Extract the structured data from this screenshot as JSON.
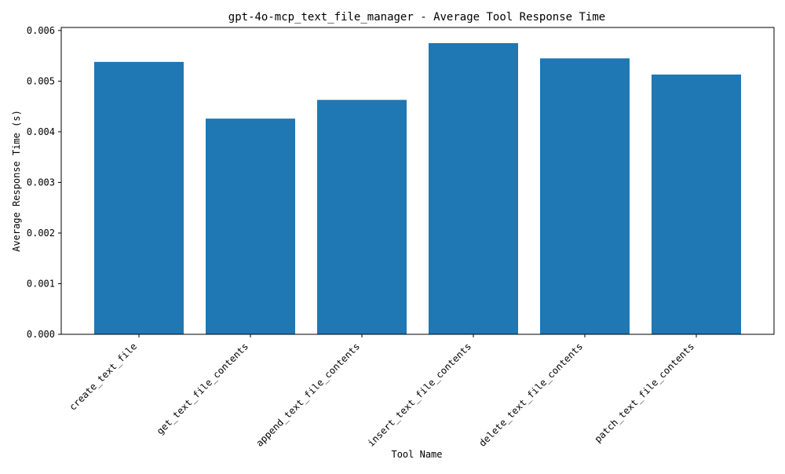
{
  "chart_data": {
    "type": "bar",
    "title": "gpt-4o-mcp_text_file_manager - Average Tool Response Time",
    "xlabel": "Tool Name",
    "ylabel": "Average Response Time (s)",
    "categories": [
      "create_text_file",
      "get_text_file_contents",
      "append_text_file_contents",
      "insert_text_file_contents",
      "delete_text_file_contents",
      "patch_text_file_contents"
    ],
    "values": [
      0.00538,
      0.00426,
      0.00463,
      0.00575,
      0.00545,
      0.00513
    ],
    "ylim": [
      0,
      0.00606
    ],
    "yticks": [
      "0.000",
      "0.001",
      "0.002",
      "0.003",
      "0.004",
      "0.005",
      "0.006"
    ],
    "bar_color": "#1f77b4",
    "grid": false
  }
}
